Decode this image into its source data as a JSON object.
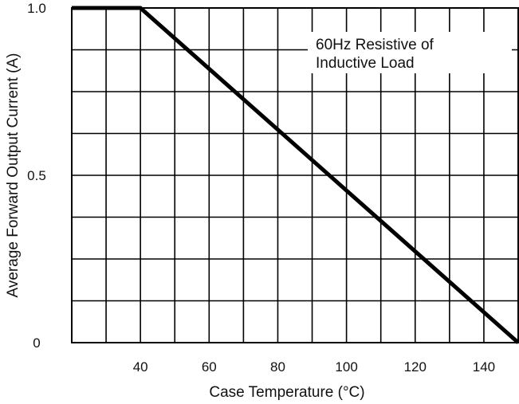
{
  "chart_data": {
    "type": "line",
    "xlabel": "Case Temperature (°C)",
    "ylabel": "Average Forward Output Current (A)",
    "xlim": [
      20,
      150
    ],
    "ylim": [
      0,
      1.0
    ],
    "x_ticks": [
      40,
      60,
      80,
      100,
      120,
      140
    ],
    "y_ticks": [
      0,
      0.5,
      1.0
    ],
    "x_tick_labels": [
      "40",
      "60",
      "80",
      "100",
      "120",
      "140"
    ],
    "y_tick_labels": [
      "0",
      "0.5",
      "1.0"
    ],
    "grid": true,
    "x_grid_step": 10,
    "y_grid_step": 0.125,
    "line_color": "#000000",
    "annotation": [
      "60Hz Resistive of",
      "Inductive Load"
    ],
    "legend_position": "top-right",
    "series": [
      {
        "x": [
          20,
          40,
          150
        ],
        "y": [
          1.0,
          1.0,
          0
        ]
      }
    ]
  }
}
